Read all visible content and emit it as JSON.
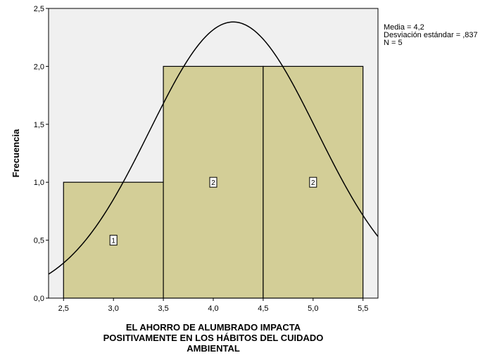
{
  "chart_data": {
    "type": "histogram",
    "xlabel_lines": [
      "EL AHORRO DE ALUMBRADO IMPACTA",
      "POSITIVAMENTE EN LOS HÁBITOS DEL CUIDADO",
      "AMBIENTAL"
    ],
    "ylabel": "Frecuencia",
    "xlim": [
      2.35,
      5.65
    ],
    "ylim": [
      0,
      2.5
    ],
    "x_ticks": [
      2.5,
      3.0,
      3.5,
      4.0,
      4.5,
      5.0,
      5.5
    ],
    "x_tick_labels": [
      "2,5",
      "3,0",
      "3,5",
      "4,0",
      "4,5",
      "5,0",
      "5,5"
    ],
    "y_ticks": [
      0,
      0.5,
      1.0,
      1.5,
      2.0,
      2.5
    ],
    "y_tick_labels": [
      "0,0",
      "0,5",
      "1,0",
      "1,5",
      "2,0",
      "2,5"
    ],
    "bins": [
      {
        "start": 2.5,
        "end": 3.5,
        "count": 1,
        "label": "1"
      },
      {
        "start": 3.5,
        "end": 4.5,
        "count": 2,
        "label": "2"
      },
      {
        "start": 4.5,
        "end": 5.5,
        "count": 2,
        "label": "2"
      }
    ],
    "normal_curve": {
      "mean": 4.2,
      "sd": 0.837,
      "n": 5,
      "bin_width": 1.0
    },
    "stats": [
      "Media = 4,2",
      "Desviación estándar = ,837",
      "N = 5"
    ],
    "grid": false,
    "legend": "top-right",
    "colors": {
      "plot_background": "#f0f0f0",
      "bar_fill": "#d3ce97",
      "bar_stroke": "#000000",
      "curve": "#000000"
    }
  }
}
